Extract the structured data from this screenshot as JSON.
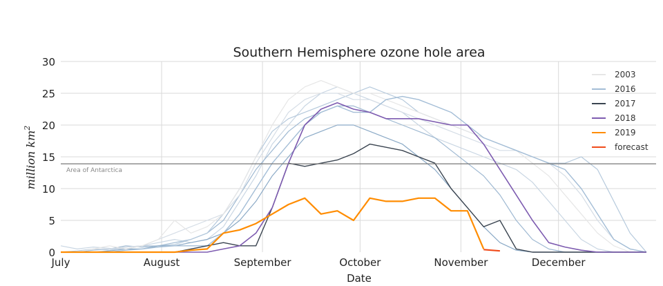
{
  "chart_data": {
    "type": "line",
    "title": "Southern Hemisphere ozone hole area",
    "xlabel": "Date",
    "ylabel": "million km",
    "ylabel_superscript": "2",
    "ylim": [
      0,
      30
    ],
    "xlim": [
      "07-01",
      "12-31"
    ],
    "yticks": [
      0,
      5,
      10,
      15,
      20,
      25,
      30
    ],
    "xticks": [
      {
        "date": "07-01",
        "label": "July"
      },
      {
        "date": "08-01",
        "label": "August"
      },
      {
        "date": "09-01",
        "label": "September"
      },
      {
        "date": "10-01",
        "label": "October"
      },
      {
        "date": "11-01",
        "label": "November"
      },
      {
        "date": "12-01",
        "label": "December"
      }
    ],
    "grid": true,
    "legend_position": "top-right",
    "reference_line": {
      "value": 13.9,
      "label": "Area of Antarctica",
      "color": "#777777"
    },
    "x": [
      "07-01",
      "07-06",
      "07-11",
      "07-16",
      "07-21",
      "07-26",
      "07-31",
      "08-05",
      "08-10",
      "08-15",
      "08-20",
      "08-25",
      "08-30",
      "09-04",
      "09-09",
      "09-14",
      "09-19",
      "09-24",
      "09-29",
      "10-04",
      "10-09",
      "10-14",
      "10-19",
      "10-24",
      "10-29",
      "11-03",
      "11-08",
      "11-13",
      "11-18",
      "11-23",
      "11-28",
      "12-03",
      "12-08",
      "12-13",
      "12-18",
      "12-23",
      "12-28"
    ],
    "series": [
      {
        "name": "",
        "color": "#c9d6e3",
        "width": 1.2,
        "values": [
          1,
          0.5,
          0.8,
          0.6,
          0.5,
          1,
          1.5,
          2,
          1.5,
          2,
          4,
          8,
          12,
          17,
          20,
          23,
          25,
          26,
          25,
          24,
          23,
          22,
          20,
          18,
          17,
          16,
          15,
          14,
          13,
          11,
          8,
          5,
          2,
          0.5,
          0,
          0,
          0
        ]
      },
      {
        "name": "",
        "color": "#9fb9d2",
        "width": 1.2,
        "values": [
          0,
          0,
          0.3,
          0.5,
          1,
          0.8,
          1,
          1.5,
          2,
          3,
          5,
          9,
          13,
          16,
          19,
          21,
          22,
          23,
          23,
          22,
          21,
          20,
          19,
          18,
          16,
          14,
          12,
          9,
          5,
          2,
          0.5,
          0,
          0,
          0,
          0,
          0,
          0
        ]
      },
      {
        "name": "",
        "color": "#b5c9dc",
        "width": 1.2,
        "values": [
          0,
          0.2,
          0.5,
          0.3,
          0.8,
          1,
          1,
          1.2,
          2,
          3,
          6,
          10,
          15,
          19,
          21,
          22,
          23,
          24,
          25,
          26,
          25,
          24,
          22,
          21,
          20,
          19,
          18,
          17,
          16,
          15,
          14,
          14,
          15,
          13,
          8,
          3,
          0
        ]
      },
      {
        "name": "",
        "color": "#d5dde6",
        "width": 1.2,
        "values": [
          0,
          0,
          0.5,
          0.5,
          0.8,
          1,
          2,
          3,
          4,
          5,
          6,
          9,
          14,
          18,
          22,
          24,
          25,
          25,
          24,
          24,
          23,
          22,
          21,
          20,
          19,
          18,
          17,
          16,
          16,
          15,
          14,
          12,
          9,
          5,
          2,
          0.5,
          0
        ]
      },
      {
        "name": "",
        "color": "#8aa9c6",
        "width": 1.2,
        "values": [
          0,
          0,
          0,
          0.2,
          0.5,
          0.5,
          1,
          1,
          1.5,
          2,
          3,
          5,
          8,
          12,
          15,
          18,
          19,
          20,
          20,
          19,
          18,
          17,
          15,
          13,
          10,
          7,
          4,
          1.5,
          0.3,
          0,
          0,
          0,
          0,
          0,
          0,
          0,
          0
        ]
      },
      {
        "name": "2003",
        "color": "#e6e6e6",
        "width": 1.2,
        "values": [
          0,
          0,
          0.5,
          1,
          0.5,
          1,
          2,
          5,
          3,
          4,
          6,
          10,
          15,
          20,
          24,
          26,
          27,
          26,
          25,
          25,
          24,
          23,
          22,
          21,
          20,
          19,
          18,
          17,
          16,
          14,
          12,
          9,
          6,
          3,
          1,
          0,
          0
        ]
      },
      {
        "name": "2016",
        "color": "#a3bdd6",
        "width": 1.4,
        "values": [
          0,
          0,
          0,
          0,
          0.3,
          0.5,
          0.8,
          1,
          1,
          1,
          3,
          6,
          10,
          14,
          17,
          20,
          22,
          23,
          22,
          22,
          24,
          24.5,
          24,
          23,
          22,
          20,
          18,
          17,
          16,
          15,
          14,
          13,
          10,
          6,
          2,
          0.5,
          0
        ]
      },
      {
        "name": "2017",
        "color": "#3a4450",
        "width": 1.4,
        "values": [
          0,
          0,
          0,
          0,
          0,
          0,
          0,
          0,
          0.5,
          1,
          1.5,
          1,
          1,
          7,
          14,
          13.5,
          14,
          14.5,
          15.5,
          17,
          16.5,
          16,
          15,
          14,
          10,
          7,
          4,
          5,
          0.5,
          0,
          0,
          0,
          0,
          0,
          0,
          0,
          0
        ]
      },
      {
        "name": "2018",
        "color": "#7d5bb0",
        "width": 1.6,
        "values": [
          0,
          0,
          0,
          0,
          0,
          0,
          0,
          0,
          0,
          0,
          0.5,
          1,
          3,
          7,
          14,
          20,
          22.5,
          23.5,
          22.5,
          22,
          21,
          21,
          21,
          20.5,
          20,
          20,
          17,
          13,
          9,
          5,
          1.5,
          0.8,
          0.3,
          0,
          0,
          0,
          0
        ]
      },
      {
        "name": "2019",
        "color": "#ff8c00",
        "width": 2.2,
        "values": [
          0,
          0,
          0,
          0,
          0,
          0,
          0,
          0,
          0.3,
          0.5,
          3,
          3.5,
          4.5,
          6,
          7.5,
          8.5,
          6,
          6.5,
          5,
          8.5,
          8,
          8,
          8.5,
          8.5,
          6.5,
          6.5,
          0.5,
          null,
          null,
          null,
          null,
          null,
          null,
          null,
          null,
          null,
          null
        ]
      },
      {
        "name": "forecast",
        "color": "#f04a1a",
        "width": 2.2,
        "values": [
          null,
          null,
          null,
          null,
          null,
          null,
          null,
          null,
          null,
          null,
          null,
          null,
          null,
          null,
          null,
          null,
          null,
          null,
          null,
          null,
          null,
          null,
          null,
          null,
          null,
          null,
          0.4,
          0.2,
          null,
          null,
          null,
          null,
          null,
          null,
          null,
          null,
          null
        ]
      }
    ],
    "legend": [
      "2003",
      "2016",
      "2017",
      "2018",
      "2019",
      "forecast"
    ]
  }
}
